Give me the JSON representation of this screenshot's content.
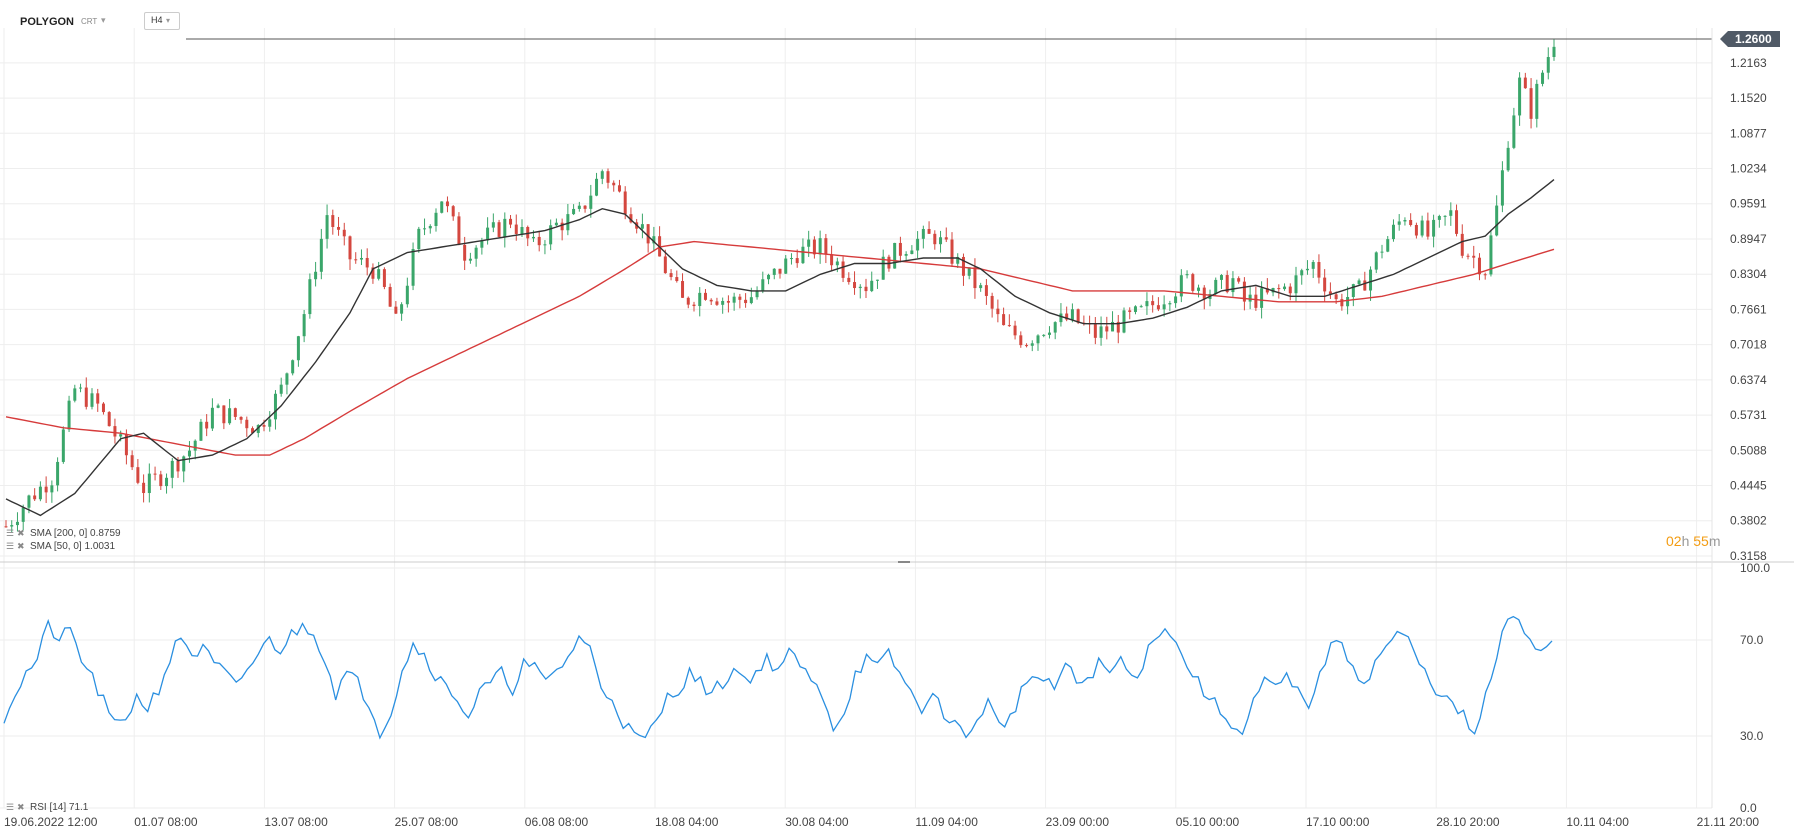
{
  "toolbar": {
    "symbol": "POLYGON",
    "exchange": "CRT",
    "exchange_caret_icon": "chevron-down-icon",
    "timeframe": "H4",
    "timeframe_caret_icon": "chevron-down-icon"
  },
  "colors": {
    "up_candle": "#3aa66a",
    "down_candle": "#d4473f",
    "wick": "#555555",
    "sma50": "#333333",
    "sma200": "#d63b3b",
    "rsi": "#2a8fe0",
    "price_tag_bg": "#505a66",
    "grid": "#eeeeee",
    "countdown_hours": "#f39c12",
    "countdown_minutes": "#f39c12"
  },
  "countdown": {
    "hours": "02",
    "h": "h",
    "minutes": "55",
    "m": "m"
  },
  "chart_data": [
    {
      "type": "candlestick",
      "title": "",
      "x_labels": [
        "19.06.2022  12:00",
        "01.07  08:00",
        "13.07  08:00",
        "25.07  08:00",
        "06.08  08:00",
        "18.08  04:00",
        "30.08  04:00",
        "11.09  04:00",
        "23.09  00:00",
        "05.10  00:00",
        "17.10  00:00",
        "28.10  20:00",
        "10.11  04:00",
        "21.11  20:00"
      ],
      "y_ticks": [
        "1.2163",
        "1.1520",
        "1.0877",
        "1.0234",
        "0.9591",
        "0.8947",
        "0.8304",
        "0.7661",
        "0.7018",
        "0.6374",
        "0.5731",
        "0.5088",
        "0.4445",
        "0.3802",
        "0.3158"
      ],
      "ylim": [
        0.3158,
        1.28
      ],
      "last_price": "1.2600",
      "price_path": [
        [
          0,
          0.37
        ],
        [
          4,
          0.42
        ],
        [
          8,
          0.46
        ],
        [
          12,
          0.62
        ],
        [
          16,
          0.59
        ],
        [
          20,
          0.52
        ],
        [
          24,
          0.44
        ],
        [
          28,
          0.47
        ],
        [
          32,
          0.51
        ],
        [
          36,
          0.58
        ],
        [
          40,
          0.57
        ],
        [
          44,
          0.55
        ],
        [
          48,
          0.62
        ],
        [
          52,
          0.76
        ],
        [
          56,
          0.94
        ],
        [
          60,
          0.86
        ],
        [
          64,
          0.84
        ],
        [
          66,
          0.8
        ],
        [
          68,
          0.74
        ],
        [
          72,
          0.9
        ],
        [
          76,
          0.97
        ],
        [
          80,
          0.87
        ],
        [
          84,
          0.9
        ],
        [
          88,
          0.93
        ],
        [
          92,
          0.88
        ],
        [
          96,
          0.92
        ],
        [
          100,
          0.94
        ],
        [
          104,
          1.02
        ],
        [
          108,
          0.96
        ],
        [
          112,
          0.9
        ],
        [
          116,
          0.82
        ],
        [
          118,
          0.78
        ],
        [
          122,
          0.8
        ],
        [
          126,
          0.78
        ],
        [
          130,
          0.79
        ],
        [
          134,
          0.83
        ],
        [
          138,
          0.87
        ],
        [
          142,
          0.88
        ],
        [
          146,
          0.84
        ],
        [
          150,
          0.81
        ],
        [
          154,
          0.86
        ],
        [
          158,
          0.89
        ],
        [
          162,
          0.9
        ],
        [
          166,
          0.85
        ],
        [
          170,
          0.8
        ],
        [
          174,
          0.73
        ],
        [
          178,
          0.71
        ],
        [
          182,
          0.74
        ],
        [
          186,
          0.75
        ],
        [
          190,
          0.72
        ],
        [
          194,
          0.74
        ],
        [
          198,
          0.76
        ],
        [
          202,
          0.79
        ],
        [
          206,
          0.82
        ],
        [
          210,
          0.8
        ],
        [
          214,
          0.82
        ],
        [
          216,
          0.78
        ],
        [
          220,
          0.79
        ],
        [
          224,
          0.81
        ],
        [
          228,
          0.85
        ],
        [
          232,
          0.78
        ],
        [
          236,
          0.8
        ],
        [
          240,
          0.88
        ],
        [
          244,
          0.94
        ],
        [
          248,
          0.9
        ],
        [
          252,
          0.94
        ],
        [
          254,
          0.88
        ],
        [
          258,
          0.84
        ],
        [
          260,
          0.95
        ],
        [
          262,
          1.08
        ],
        [
          264,
          1.18
        ],
        [
          266,
          1.13
        ],
        [
          268,
          1.2
        ],
        [
          270,
          1.26
        ]
      ],
      "sma50": [
        [
          0,
          0.42
        ],
        [
          6,
          0.39
        ],
        [
          12,
          0.43
        ],
        [
          20,
          0.53
        ],
        [
          24,
          0.54
        ],
        [
          30,
          0.49
        ],
        [
          36,
          0.5
        ],
        [
          42,
          0.53
        ],
        [
          48,
          0.59
        ],
        [
          54,
          0.67
        ],
        [
          60,
          0.76
        ],
        [
          64,
          0.84
        ],
        [
          70,
          0.87
        ],
        [
          76,
          0.88
        ],
        [
          82,
          0.89
        ],
        [
          88,
          0.9
        ],
        [
          94,
          0.91
        ],
        [
          100,
          0.93
        ],
        [
          104,
          0.95
        ],
        [
          108,
          0.94
        ],
        [
          112,
          0.9
        ],
        [
          118,
          0.84
        ],
        [
          124,
          0.81
        ],
        [
          130,
          0.8
        ],
        [
          136,
          0.8
        ],
        [
          142,
          0.83
        ],
        [
          148,
          0.85
        ],
        [
          154,
          0.85
        ],
        [
          160,
          0.86
        ],
        [
          166,
          0.86
        ],
        [
          170,
          0.84
        ],
        [
          176,
          0.79
        ],
        [
          182,
          0.76
        ],
        [
          188,
          0.74
        ],
        [
          194,
          0.74
        ],
        [
          200,
          0.75
        ],
        [
          206,
          0.77
        ],
        [
          212,
          0.8
        ],
        [
          218,
          0.81
        ],
        [
          224,
          0.79
        ],
        [
          230,
          0.79
        ],
        [
          236,
          0.81
        ],
        [
          242,
          0.83
        ],
        [
          248,
          0.86
        ],
        [
          254,
          0.89
        ],
        [
          258,
          0.9
        ],
        [
          262,
          0.94
        ],
        [
          266,
          0.97
        ],
        [
          270,
          1.0031
        ]
      ],
      "sma200": [
        [
          0,
          0.57
        ],
        [
          10,
          0.55
        ],
        [
          20,
          0.54
        ],
        [
          30,
          0.52
        ],
        [
          40,
          0.5
        ],
        [
          46,
          0.5
        ],
        [
          52,
          0.53
        ],
        [
          60,
          0.58
        ],
        [
          70,
          0.64
        ],
        [
          80,
          0.69
        ],
        [
          90,
          0.74
        ],
        [
          100,
          0.79
        ],
        [
          108,
          0.84
        ],
        [
          114,
          0.88
        ],
        [
          120,
          0.89
        ],
        [
          130,
          0.88
        ],
        [
          140,
          0.87
        ],
        [
          150,
          0.86
        ],
        [
          160,
          0.85
        ],
        [
          170,
          0.84
        ],
        [
          178,
          0.82
        ],
        [
          186,
          0.8
        ],
        [
          194,
          0.8
        ],
        [
          202,
          0.8
        ],
        [
          212,
          0.79
        ],
        [
          222,
          0.78
        ],
        [
          232,
          0.78
        ],
        [
          240,
          0.79
        ],
        [
          248,
          0.81
        ],
        [
          256,
          0.83
        ],
        [
          262,
          0.85
        ],
        [
          270,
          0.8759
        ]
      ],
      "legend": [
        {
          "label": "SMA",
          "params": "[200,  0]",
          "value": "0.8759",
          "icon_menu": "menu-icon",
          "icon_close": "close-icon"
        },
        {
          "label": "SMA",
          "params": "[50,  0]",
          "value": "1.0031",
          "icon_menu": "menu-icon",
          "icon_close": "close-icon"
        }
      ]
    },
    {
      "type": "line",
      "title": "",
      "series_label": "RSI",
      "series_params": "[14]",
      "series_value": "71.1",
      "y_ticks": [
        "100.0",
        "70.0",
        "30.0",
        "0.0"
      ],
      "ylim": [
        0,
        100
      ],
      "rsi_path": [
        [
          0,
          38
        ],
        [
          2,
          48
        ],
        [
          4,
          56
        ],
        [
          6,
          62
        ],
        [
          8,
          76
        ],
        [
          10,
          70
        ],
        [
          12,
          74
        ],
        [
          14,
          62
        ],
        [
          16,
          54
        ],
        [
          18,
          44
        ],
        [
          20,
          34
        ],
        [
          22,
          38
        ],
        [
          24,
          46
        ],
        [
          26,
          42
        ],
        [
          28,
          50
        ],
        [
          30,
          62
        ],
        [
          32,
          72
        ],
        [
          34,
          64
        ],
        [
          36,
          66
        ],
        [
          38,
          60
        ],
        [
          40,
          56
        ],
        [
          42,
          50
        ],
        [
          44,
          58
        ],
        [
          46,
          64
        ],
        [
          48,
          70
        ],
        [
          50,
          66
        ],
        [
          52,
          72
        ],
        [
          54,
          76
        ],
        [
          56,
          74
        ],
        [
          58,
          62
        ],
        [
          60,
          48
        ],
        [
          62,
          56
        ],
        [
          64,
          52
        ],
        [
          66,
          44
        ],
        [
          68,
          32
        ],
        [
          70,
          40
        ],
        [
          72,
          58
        ],
        [
          74,
          68
        ],
        [
          76,
          64
        ],
        [
          78,
          56
        ],
        [
          80,
          50
        ],
        [
          82,
          46
        ],
        [
          84,
          38
        ],
        [
          86,
          48
        ],
        [
          88,
          52
        ],
        [
          90,
          56
        ],
        [
          92,
          50
        ],
        [
          94,
          60
        ],
        [
          96,
          58
        ],
        [
          98,
          52
        ],
        [
          100,
          58
        ],
        [
          102,
          62
        ],
        [
          104,
          72
        ],
        [
          106,
          66
        ],
        [
          108,
          50
        ],
        [
          110,
          46
        ],
        [
          112,
          36
        ],
        [
          114,
          30
        ],
        [
          116,
          28
        ],
        [
          118,
          36
        ],
        [
          120,
          46
        ],
        [
          122,
          50
        ],
        [
          124,
          56
        ],
        [
          126,
          52
        ],
        [
          128,
          48
        ],
        [
          130,
          52
        ],
        [
          132,
          58
        ],
        [
          134,
          54
        ],
        [
          136,
          56
        ],
        [
          138,
          62
        ],
        [
          140,
          58
        ],
        [
          142,
          64
        ],
        [
          144,
          60
        ],
        [
          146,
          52
        ],
        [
          148,
          48
        ],
        [
          150,
          34
        ],
        [
          152,
          40
        ],
        [
          154,
          56
        ],
        [
          156,
          62
        ],
        [
          158,
          58
        ],
        [
          160,
          64
        ],
        [
          162,
          56
        ],
        [
          164,
          48
        ],
        [
          166,
          42
        ],
        [
          168,
          46
        ],
        [
          170,
          40
        ],
        [
          172,
          36
        ],
        [
          174,
          28
        ],
        [
          176,
          38
        ],
        [
          178,
          44
        ],
        [
          180,
          34
        ],
        [
          182,
          38
        ],
        [
          184,
          48
        ],
        [
          186,
          56
        ],
        [
          188,
          52
        ],
        [
          190,
          50
        ],
        [
          192,
          60
        ],
        [
          194,
          52
        ],
        [
          196,
          54
        ],
        [
          198,
          60
        ],
        [
          200,
          56
        ],
        [
          202,
          62
        ],
        [
          204,
          54
        ],
        [
          206,
          60
        ],
        [
          208,
          72
        ],
        [
          210,
          76
        ],
        [
          212,
          68
        ],
        [
          214,
          60
        ],
        [
          216,
          52
        ],
        [
          218,
          46
        ],
        [
          220,
          40
        ],
        [
          222,
          36
        ],
        [
          224,
          30
        ],
        [
          226,
          44
        ],
        [
          228,
          52
        ],
        [
          230,
          50
        ],
        [
          232,
          54
        ],
        [
          234,
          48
        ],
        [
          236,
          44
        ],
        [
          238,
          54
        ],
        [
          240,
          70
        ],
        [
          242,
          66
        ],
        [
          244,
          60
        ],
        [
          246,
          52
        ],
        [
          248,
          60
        ],
        [
          250,
          68
        ],
        [
          252,
          72
        ],
        [
          254,
          70
        ],
        [
          256,
          60
        ],
        [
          258,
          52
        ],
        [
          260,
          48
        ],
        [
          262,
          42
        ],
        [
          264,
          38
        ],
        [
          266,
          30
        ],
        [
          268,
          46
        ],
        [
          270,
          62
        ],
        [
          272,
          80
        ],
        [
          274,
          76
        ],
        [
          276,
          70
        ],
        [
          278,
          66
        ],
        [
          280,
          71.1
        ]
      ]
    }
  ]
}
